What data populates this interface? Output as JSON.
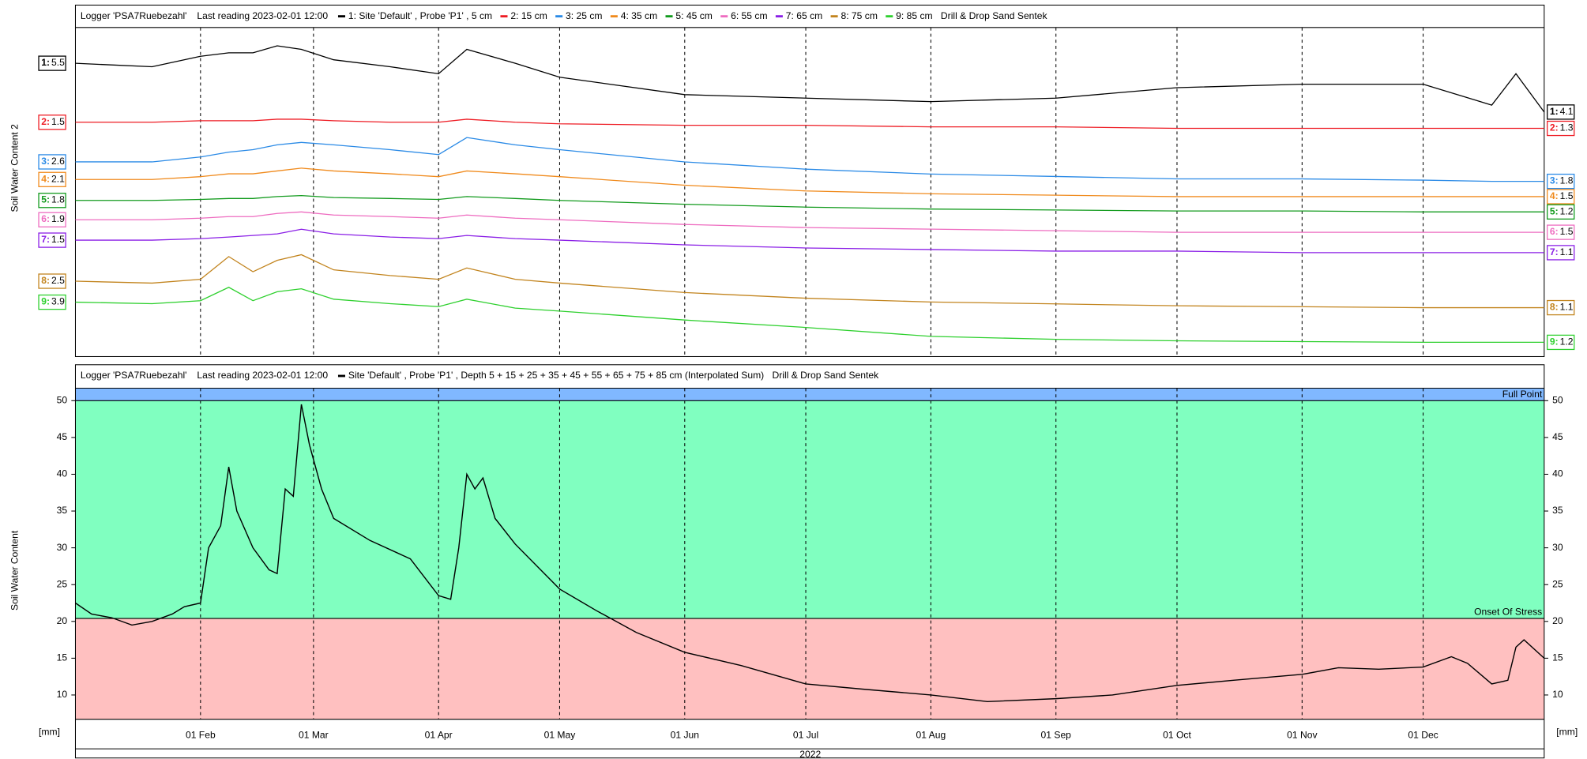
{
  "chart_data": [
    {
      "type": "line",
      "title": "Logger 'PSA7Ruebezahl'",
      "subtitle": "Last reading 2023-02-01 12:00",
      "note": "Drill & Drop Sand Sentek",
      "ylabel": "Soil Water Content 2",
      "x": [
        "2022-01-01",
        "2022-01-20",
        "2022-02-01",
        "2022-02-08",
        "2022-02-14",
        "2022-02-20",
        "2022-02-26",
        "2022-03-06",
        "2022-03-20",
        "2022-04-01",
        "2022-04-08",
        "2022-04-20",
        "2022-05-01",
        "2022-06-01",
        "2022-07-01",
        "2022-08-01",
        "2022-09-01",
        "2022-10-01",
        "2022-11-01",
        "2022-12-01",
        "2022-12-18",
        "2022-12-24",
        "2022-12-31"
      ],
      "xlim": [
        "2022-01-01",
        "2022-12-31"
      ],
      "xticks": [
        "2022-02-01",
        "2022-03-01",
        "2022-04-01",
        "2022-05-01",
        "2022-06-01",
        "2022-07-01",
        "2022-08-01",
        "2022-09-01",
        "2022-10-01",
        "2022-11-01",
        "2022-12-01"
      ],
      "grid": true,
      "series": [
        {
          "tag": "1:",
          "name": "1: Site 'Default' , Probe 'P1' , 5 cm",
          "color": "#000000",
          "values": [
            5.5,
            5.4,
            5.7,
            5.8,
            5.8,
            6.0,
            5.9,
            5.6,
            5.4,
            5.2,
            5.9,
            5.5,
            5.1,
            4.6,
            4.5,
            4.4,
            4.5,
            4.8,
            4.9,
            4.9,
            4.3,
            5.2,
            4.1
          ]
        },
        {
          "tag": "2:",
          "name": "2: 15 cm",
          "color": "#ee1c24",
          "values": [
            1.5,
            1.5,
            1.55,
            1.55,
            1.55,
            1.6,
            1.6,
            1.55,
            1.5,
            1.5,
            1.6,
            1.5,
            1.45,
            1.4,
            1.4,
            1.35,
            1.35,
            1.3,
            1.3,
            1.3,
            1.3,
            1.3,
            1.3
          ]
        },
        {
          "tag": "3:",
          "name": "3: 25 cm",
          "color": "#2a8ae6",
          "values": [
            2.6,
            2.6,
            2.8,
            3.0,
            3.1,
            3.3,
            3.4,
            3.3,
            3.1,
            2.9,
            3.6,
            3.3,
            3.1,
            2.6,
            2.3,
            2.1,
            2.0,
            1.9,
            1.9,
            1.85,
            1.8,
            1.8,
            1.8
          ]
        },
        {
          "tag": "4:",
          "name": "4: 35 cm",
          "color": "#f08a1c",
          "values": [
            2.1,
            2.1,
            2.2,
            2.3,
            2.3,
            2.4,
            2.5,
            2.4,
            2.3,
            2.2,
            2.4,
            2.3,
            2.2,
            1.9,
            1.7,
            1.6,
            1.55,
            1.5,
            1.5,
            1.5,
            1.5,
            1.5,
            1.5
          ]
        },
        {
          "tag": "5:",
          "name": "5: 45 cm",
          "color": "#119a1c",
          "values": [
            1.8,
            1.8,
            1.85,
            1.9,
            1.9,
            2.0,
            2.05,
            1.95,
            1.9,
            1.85,
            2.0,
            1.9,
            1.8,
            1.6,
            1.45,
            1.35,
            1.3,
            1.25,
            1.25,
            1.2,
            1.2,
            1.2,
            1.2
          ]
        },
        {
          "tag": "6:",
          "name": "6: 55 cm",
          "color": "#ee6cc0",
          "values": [
            1.9,
            1.9,
            1.95,
            2.0,
            2.0,
            2.1,
            2.15,
            2.05,
            2.0,
            1.95,
            2.05,
            1.95,
            1.9,
            1.75,
            1.65,
            1.6,
            1.55,
            1.5,
            1.5,
            1.5,
            1.5,
            1.5,
            1.5
          ]
        },
        {
          "tag": "7:",
          "name": "7: 65 cm",
          "color": "#8a1ee6",
          "values": [
            1.5,
            1.5,
            1.55,
            1.6,
            1.65,
            1.7,
            1.85,
            1.7,
            1.6,
            1.55,
            1.65,
            1.55,
            1.5,
            1.35,
            1.25,
            1.2,
            1.15,
            1.15,
            1.1,
            1.1,
            1.1,
            1.1,
            1.1
          ]
        },
        {
          "tag": "8:",
          "name": "8: 75 cm",
          "color": "#c2841e",
          "values": [
            2.5,
            2.4,
            2.6,
            3.8,
            3.0,
            3.6,
            3.9,
            3.1,
            2.8,
            2.6,
            3.2,
            2.6,
            2.4,
            1.9,
            1.6,
            1.4,
            1.3,
            1.2,
            1.15,
            1.1,
            1.1,
            1.1,
            1.1
          ]
        },
        {
          "tag": "9:",
          "name": "9: 85 cm",
          "color": "#2ed02e",
          "values": [
            3.9,
            3.8,
            4.0,
            4.9,
            4.0,
            4.6,
            4.8,
            4.1,
            3.8,
            3.6,
            4.1,
            3.5,
            3.3,
            2.7,
            2.2,
            1.6,
            1.4,
            1.3,
            1.25,
            1.2,
            1.2,
            1.2,
            1.2
          ]
        }
      ]
    },
    {
      "type": "line",
      "title": "Logger 'PSA7Ruebezahl'",
      "subtitle": "Last reading 2023-02-01 12:00",
      "note": "Drill & Drop Sand Sentek",
      "ylabel": "Soil Water Content",
      "yunit": "[mm]",
      "xlabel": "2022",
      "x": [
        "2022-01-01",
        "2022-01-05",
        "2022-01-10",
        "2022-01-15",
        "2022-01-20",
        "2022-01-25",
        "2022-01-28",
        "2022-02-01",
        "2022-02-03",
        "2022-02-06",
        "2022-02-08",
        "2022-02-10",
        "2022-02-14",
        "2022-02-18",
        "2022-02-20",
        "2022-02-22",
        "2022-02-24",
        "2022-02-26",
        "2022-02-28",
        "2022-03-03",
        "2022-03-06",
        "2022-03-15",
        "2022-03-25",
        "2022-04-01",
        "2022-04-04",
        "2022-04-06",
        "2022-04-08",
        "2022-04-10",
        "2022-04-12",
        "2022-04-15",
        "2022-04-20",
        "2022-05-01",
        "2022-05-10",
        "2022-05-20",
        "2022-06-01",
        "2022-06-15",
        "2022-07-01",
        "2022-07-15",
        "2022-08-01",
        "2022-08-15",
        "2022-09-01",
        "2022-09-15",
        "2022-10-01",
        "2022-10-15",
        "2022-11-01",
        "2022-11-10",
        "2022-11-20",
        "2022-12-01",
        "2022-12-08",
        "2022-12-12",
        "2022-12-18",
        "2022-12-22",
        "2022-12-24",
        "2022-12-26",
        "2022-12-31"
      ],
      "series": [
        {
          "name": "Site 'Default' , Probe 'P1' , Depth 5 + 15 + 25 + 35 + 45 + 55 + 65 + 75 + 85 cm (Interpolated Sum)",
          "color": "#000000",
          "values": [
            22.5,
            21,
            20.5,
            19.5,
            20,
            21,
            22,
            22.5,
            30,
            33,
            41,
            35,
            30,
            27,
            26.5,
            38,
            37,
            49.5,
            44,
            38,
            34,
            31,
            28.5,
            23.5,
            23,
            30,
            40,
            38,
            39.5,
            34,
            30.5,
            24.4,
            21.5,
            18.5,
            15.8,
            14,
            11.5,
            10.8,
            10,
            9.1,
            9.5,
            10,
            11.3,
            12,
            12.8,
            13.7,
            13.5,
            13.8,
            15.2,
            14.3,
            11.5,
            12,
            16.5,
            17.5,
            15
          ]
        }
      ],
      "xlim": [
        "2022-01-01",
        "2022-12-31"
      ],
      "xticks": [
        {
          "value": "2022-02-01",
          "label": "01 Feb"
        },
        {
          "value": "2022-03-01",
          "label": "01 Mar"
        },
        {
          "value": "2022-04-01",
          "label": "01 Apr"
        },
        {
          "value": "2022-05-01",
          "label": "01 May"
        },
        {
          "value": "2022-06-01",
          "label": "01 Jun"
        },
        {
          "value": "2022-07-01",
          "label": "01 Jul"
        },
        {
          "value": "2022-08-01",
          "label": "01 Aug"
        },
        {
          "value": "2022-09-01",
          "label": "01 Sep"
        },
        {
          "value": "2022-10-01",
          "label": "01 Oct"
        },
        {
          "value": "2022-11-01",
          "label": "01 Nov"
        },
        {
          "value": "2022-12-01",
          "label": "01 Dec"
        }
      ],
      "ylim": [
        6.7,
        51.7
      ],
      "yticks": [
        10,
        15,
        20,
        25,
        30,
        35,
        40,
        45,
        50
      ],
      "grid": true,
      "levels": [
        {
          "label": "Onset Of Stress",
          "value": 20.4
        },
        {
          "label": "Full Point",
          "value": 50
        }
      ],
      "zone_colors": [
        "#ffc0c0",
        "#80ffc0",
        "#80b8ff"
      ]
    }
  ]
}
